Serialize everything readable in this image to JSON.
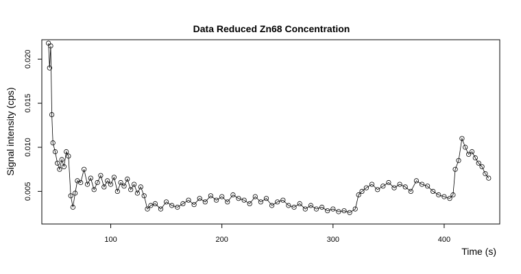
{
  "chart_data": {
    "type": "scatter",
    "title": "Data Reduced Zn68 Concentration",
    "xlabel": "Time (s)",
    "ylabel": "Signal intensity (cps)",
    "xlim": [
      38,
      450
    ],
    "ylim": [
      0.0013,
      0.0222
    ],
    "x_ticks": [
      100,
      200,
      300,
      400
    ],
    "x_tick_labels": [
      "100",
      "200",
      "300",
      "400"
    ],
    "y_ticks": [
      0.005,
      0.01,
      0.015,
      0.02
    ],
    "y_tick_labels": [
      "0.005",
      "0.010",
      "0.015",
      "0.020"
    ],
    "grid": false,
    "legend": "none",
    "markers": "open-circle",
    "connected": true,
    "series": [
      {
        "x": [
          44,
          45,
          46,
          47,
          48,
          50,
          52,
          54,
          56,
          58,
          60,
          62,
          64,
          66,
          68,
          70,
          73,
          76,
          79,
          82,
          85,
          88,
          91,
          94,
          97,
          100,
          103,
          106,
          109,
          112,
          115,
          118,
          121,
          124,
          127,
          130,
          133,
          136,
          140,
          145,
          150,
          155,
          160,
          165,
          170,
          175,
          180,
          185,
          190,
          195,
          200,
          205,
          210,
          215,
          220,
          225,
          230,
          235,
          240,
          245,
          250,
          255,
          260,
          265,
          270,
          275,
          280,
          285,
          290,
          295,
          300,
          305,
          310,
          315,
          320,
          323,
          326,
          330,
          335,
          340,
          345,
          350,
          355,
          360,
          365,
          370,
          375,
          380,
          385,
          390,
          395,
          400,
          405,
          408,
          410,
          413,
          416,
          419,
          422,
          425,
          428,
          431,
          434,
          437,
          440
        ],
        "y": [
          0.0218,
          0.019,
          0.0215,
          0.0137,
          0.0105,
          0.0095,
          0.0082,
          0.0075,
          0.0086,
          0.0078,
          0.0095,
          0.009,
          0.0045,
          0.0032,
          0.0048,
          0.0062,
          0.006,
          0.0075,
          0.0058,
          0.0065,
          0.0052,
          0.006,
          0.0068,
          0.0055,
          0.0062,
          0.0058,
          0.0066,
          0.005,
          0.006,
          0.0056,
          0.0064,
          0.0052,
          0.0058,
          0.0048,
          0.0055,
          0.0045,
          0.003,
          0.0034,
          0.0036,
          0.003,
          0.0038,
          0.0034,
          0.0032,
          0.0036,
          0.004,
          0.0035,
          0.0042,
          0.0038,
          0.0045,
          0.004,
          0.0044,
          0.0038,
          0.0046,
          0.0042,
          0.004,
          0.0036,
          0.0044,
          0.0038,
          0.0042,
          0.0034,
          0.0038,
          0.004,
          0.0034,
          0.0032,
          0.0036,
          0.003,
          0.0034,
          0.003,
          0.0032,
          0.0028,
          0.003,
          0.0027,
          0.0028,
          0.0026,
          0.003,
          0.0046,
          0.005,
          0.0054,
          0.0058,
          0.0052,
          0.0056,
          0.006,
          0.0054,
          0.0058,
          0.0055,
          0.005,
          0.0062,
          0.0058,
          0.0056,
          0.005,
          0.0046,
          0.0044,
          0.0042,
          0.0046,
          0.0075,
          0.0085,
          0.011,
          0.01,
          0.0092,
          0.0095,
          0.0088,
          0.0082,
          0.0078,
          0.007,
          0.0065
        ]
      }
    ]
  }
}
